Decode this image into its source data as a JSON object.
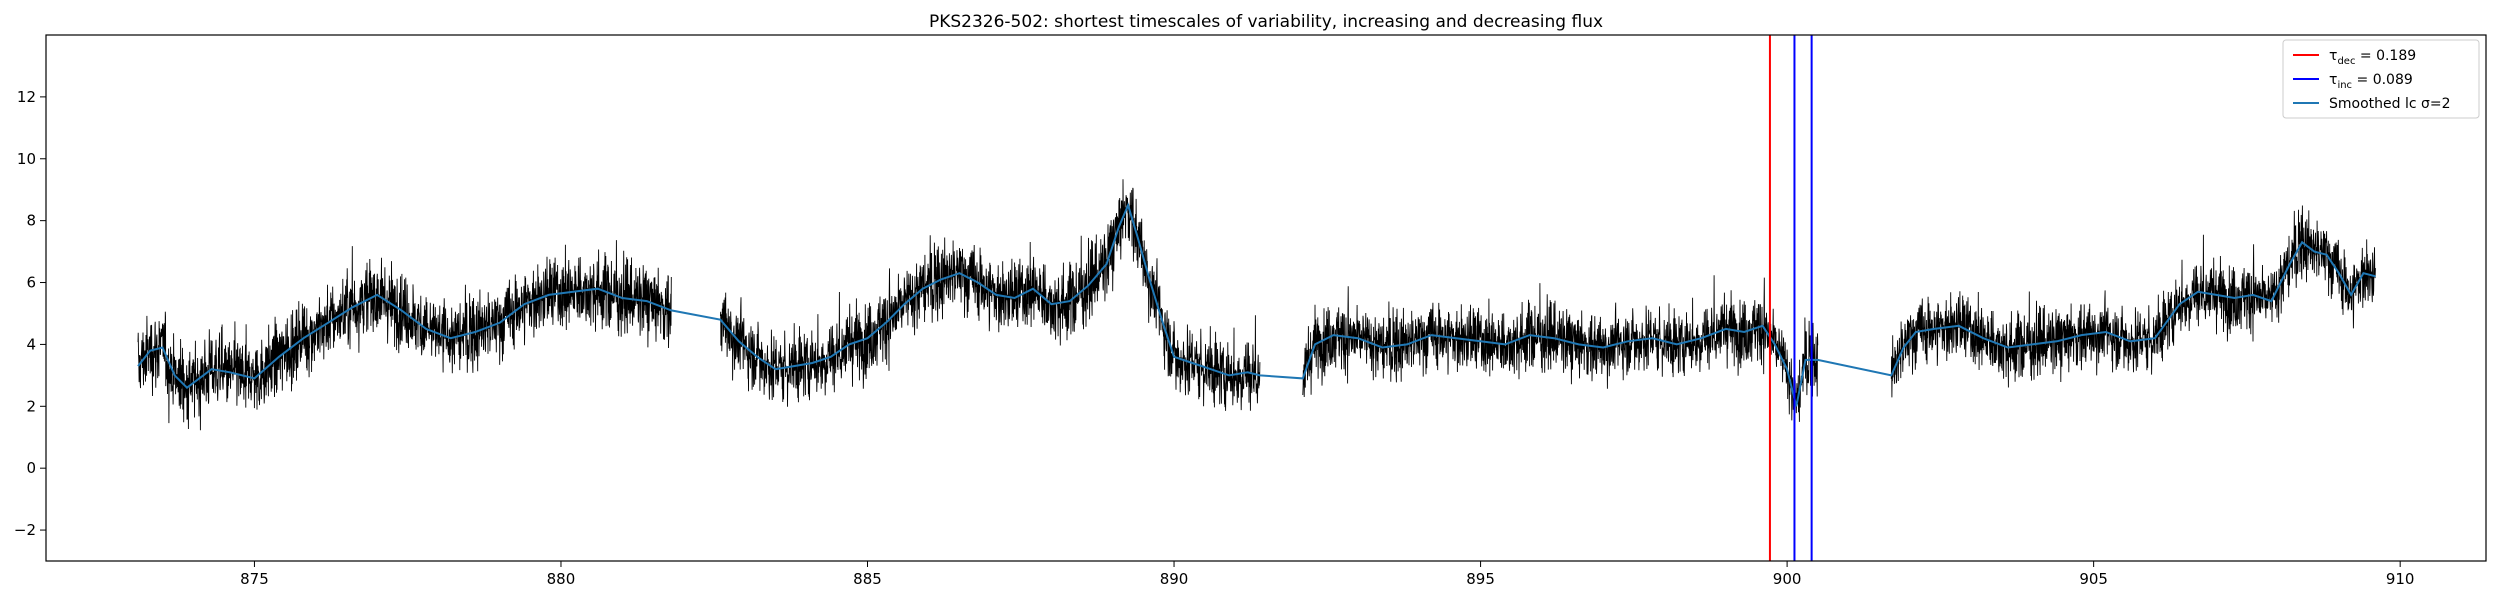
{
  "chart_data": {
    "type": "line",
    "title": "PKS2326-502: shortest timescales of variability, increasing and decreasing flux",
    "xlabel": "",
    "ylabel": "",
    "xlim": [
      871.6,
      911.4
    ],
    "ylim": [
      -3.0,
      14.0
    ],
    "xticks": [
      875,
      880,
      885,
      890,
      895,
      900,
      905,
      910
    ],
    "yticks": [
      -2,
      0,
      2,
      4,
      6,
      8,
      10,
      12
    ],
    "grid": false,
    "legend_position": "top-right",
    "colors": {
      "raw": "#000000",
      "smoothed": "#1f77b4",
      "tau_dec": "#ff0000",
      "tau_inc": "#0000ff"
    },
    "legend": [
      {
        "symbol": "τ",
        "sub": "dec",
        "text": " = 0.189",
        "color": "#ff0000"
      },
      {
        "symbol": "τ",
        "sub": "inc",
        "text": " = 0.089",
        "color": "#0000ff"
      },
      {
        "symbol": "",
        "sub": "",
        "text": "Smoothed lc σ=2",
        "color": "#1f77b4"
      }
    ],
    "vlines": [
      {
        "x": 899.72,
        "color": "#ff0000",
        "series": "tau_dec"
      },
      {
        "x": 900.12,
        "color": "#0000ff",
        "series": "tau_inc"
      },
      {
        "x": 900.4,
        "color": "#0000ff",
        "series": "tau_inc"
      }
    ],
    "segments": [
      {
        "start": 873.1,
        "end": 881.8,
        "spread": 1.1
      },
      {
        "start": 882.6,
        "end": 891.4,
        "spread": 1.1
      },
      {
        "start": 892.1,
        "end": 900.5,
        "spread": 1.0
      },
      {
        "start": 901.7,
        "end": 909.6,
        "spread": 1.0
      }
    ],
    "series": [
      {
        "name": "Smoothed lc σ=2",
        "x": [
          873.1,
          873.3,
          873.5,
          873.7,
          873.9,
          874.1,
          874.3,
          874.6,
          875.0,
          875.4,
          875.8,
          876.2,
          876.6,
          877.0,
          877.4,
          877.8,
          878.2,
          878.6,
          879.0,
          879.4,
          879.8,
          880.2,
          880.6,
          881.0,
          881.4,
          881.8,
          882.6,
          882.9,
          883.2,
          883.5,
          883.8,
          884.1,
          884.4,
          884.7,
          885.0,
          885.3,
          885.6,
          885.9,
          886.2,
          886.5,
          886.8,
          887.1,
          887.4,
          887.7,
          888.0,
          888.3,
          888.6,
          888.9,
          889.1,
          889.25,
          889.4,
          889.6,
          889.8,
          890.0,
          890.3,
          890.6,
          890.9,
          891.2,
          891.4,
          892.1,
          892.3,
          892.6,
          893.0,
          893.4,
          893.8,
          894.2,
          894.6,
          895.0,
          895.4,
          895.8,
          896.2,
          896.6,
          897.0,
          897.4,
          897.8,
          898.2,
          898.6,
          899.0,
          899.3,
          899.6,
          899.8,
          900.0,
          900.15,
          900.3,
          900.5,
          901.7,
          901.9,
          902.1,
          902.4,
          902.8,
          903.2,
          903.6,
          904.0,
          904.4,
          904.8,
          905.2,
          905.6,
          906.0,
          906.4,
          906.7,
          907.0,
          907.3,
          907.6,
          907.9,
          908.2,
          908.4,
          908.6,
          908.8,
          909.0,
          909.2,
          909.4,
          909.6
        ],
        "y": [
          3.3,
          3.8,
          3.9,
          3.0,
          2.6,
          2.9,
          3.2,
          3.1,
          2.9,
          3.6,
          4.2,
          4.7,
          5.2,
          5.6,
          5.1,
          4.5,
          4.2,
          4.4,
          4.7,
          5.3,
          5.6,
          5.7,
          5.8,
          5.5,
          5.4,
          5.1,
          4.8,
          4.1,
          3.6,
          3.2,
          3.3,
          3.4,
          3.6,
          4.0,
          4.2,
          4.7,
          5.3,
          5.8,
          6.1,
          6.3,
          6.0,
          5.6,
          5.5,
          5.8,
          5.3,
          5.4,
          5.9,
          6.6,
          7.8,
          8.5,
          7.5,
          6.1,
          4.8,
          3.6,
          3.4,
          3.2,
          3.0,
          3.1,
          3.0,
          2.9,
          4.0,
          4.3,
          4.2,
          3.9,
          4.0,
          4.3,
          4.2,
          4.1,
          4.0,
          4.3,
          4.2,
          4.0,
          3.9,
          4.1,
          4.2,
          4.0,
          4.2,
          4.5,
          4.4,
          4.6,
          4.0,
          3.2,
          2.0,
          3.5,
          3.5,
          3.0,
          3.9,
          4.4,
          4.5,
          4.6,
          4.2,
          3.9,
          4.0,
          4.1,
          4.3,
          4.4,
          4.1,
          4.2,
          5.3,
          5.7,
          5.6,
          5.5,
          5.6,
          5.4,
          6.6,
          7.3,
          7.0,
          6.9,
          6.3,
          5.6,
          6.3,
          6.2
        ]
      }
    ]
  }
}
